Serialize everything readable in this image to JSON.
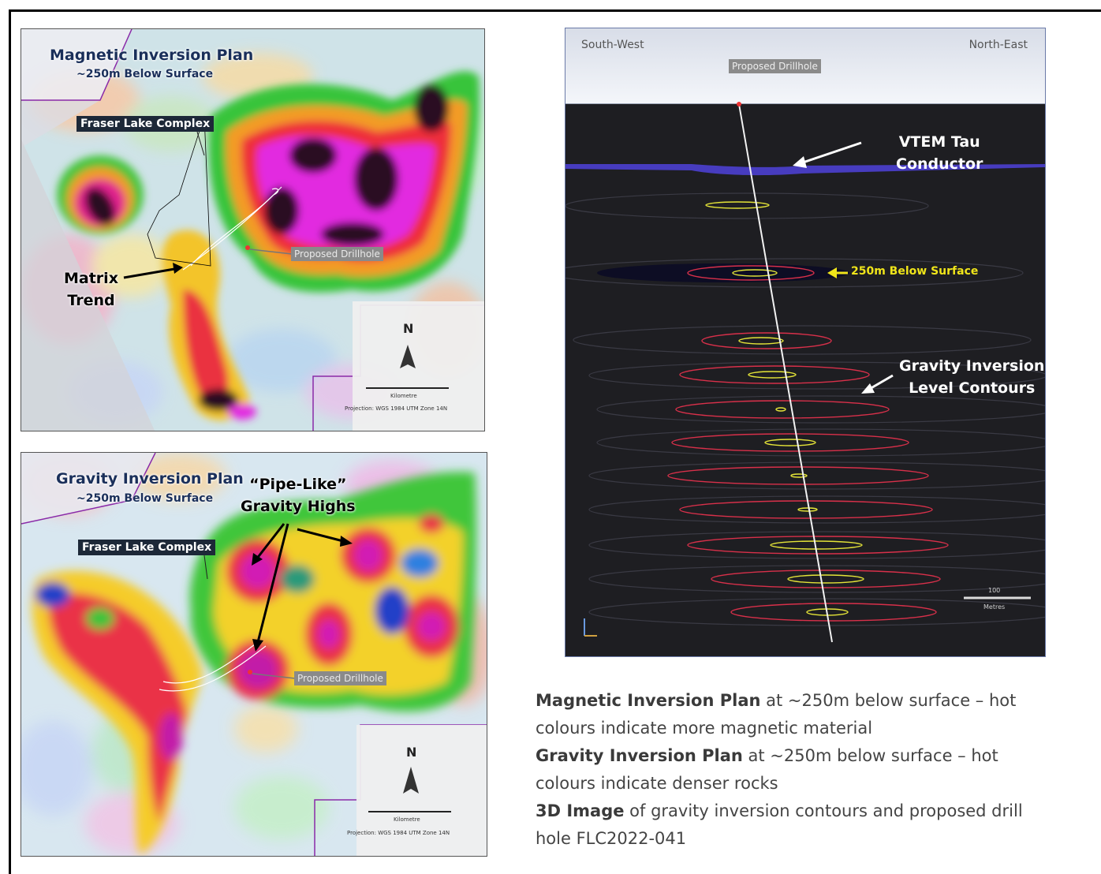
{
  "magnetic_map": {
    "title": "Magnetic Inversion Plan",
    "subtitle": "~250m Below Surface",
    "complex_label": "Fraser Lake Complex",
    "annotation_line1": "Matrix",
    "annotation_line2": "Trend",
    "drillhole_label": "Proposed Drillhole",
    "north": "N",
    "scale_unit": "Kilometre",
    "projection": "Projection: WGS 1984 UTM Zone 14N"
  },
  "gravity_map": {
    "title": "Gravity Inversion Plan",
    "subtitle": "~250m Below Surface",
    "complex_label": "Fraser Lake Complex",
    "annotation_line1": "“Pipe-Like”",
    "annotation_line2": "Gravity Highs",
    "drillhole_label": "Proposed Drillhole",
    "north": "N",
    "scale_unit": "Kilometre",
    "projection": "Projection: WGS 1984 UTM Zone 14N"
  },
  "section_3d": {
    "left_direction": "South-West",
    "right_direction": "North-East",
    "drillhole_label": "Proposed Drillhole",
    "vtem_line1": "VTEM Tau",
    "vtem_line2": "Conductor",
    "depth_label": "250m Below Surface",
    "contours_line1": "Gravity Inversion",
    "contours_line2": "Level Contours",
    "scale_value": "100",
    "scale_unit": "Metres"
  },
  "caption": {
    "line1_bold": "Magnetic Inversion Plan",
    "line1_rest": " at ~250m below surface – hot",
    "line2": "colours indicate more magnetic material",
    "line3_bold": "Gravity Inversion Plan",
    "line3_rest": " at ~250m below surface – hot",
    "line4": "colours indicate denser rocks",
    "line5_bold": "3D Image",
    "line5_rest": " of gravity inversion contours and proposed drill",
    "line6": "hole FLC2022-041"
  }
}
